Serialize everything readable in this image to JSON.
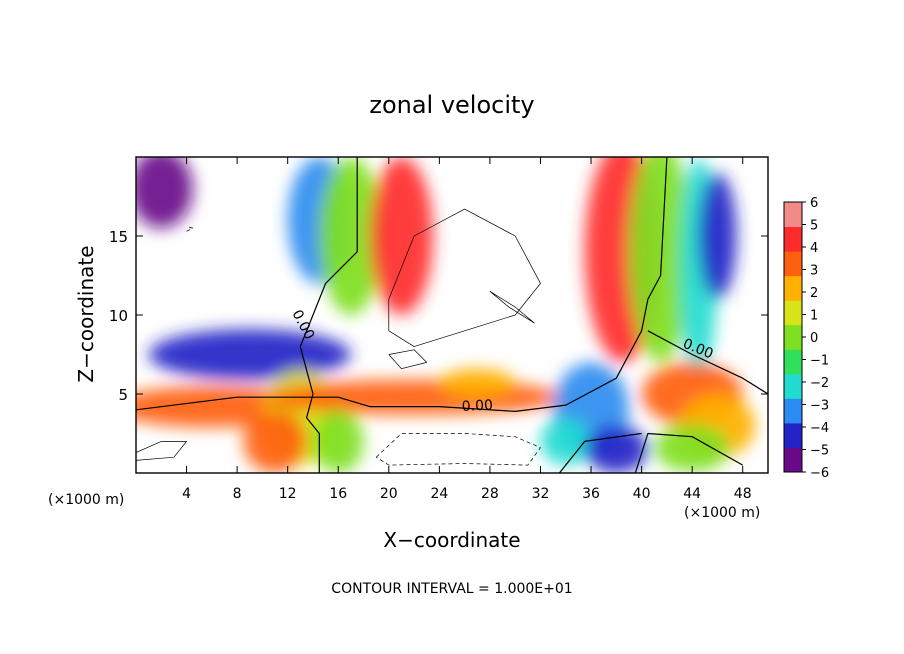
{
  "chart_data": {
    "type": "heatmap",
    "title": "zonal velocity",
    "xlabel": "X−coordinate",
    "ylabel": "Z−coordinate",
    "x_unit_left": "(×1000 m)",
    "x_unit_right": "(×1000 m)",
    "xlim": [
      0,
      50
    ],
    "ylim": [
      0,
      20
    ],
    "x_ticks": [
      4,
      8,
      12,
      16,
      20,
      24,
      28,
      32,
      36,
      40,
      44,
      48
    ],
    "y_ticks": [
      5,
      10,
      15
    ],
    "colorbar": {
      "min": -6,
      "max": 6,
      "tick_labels": [
        "6",
        "5",
        "4",
        "3",
        "2",
        "1",
        "0",
        "−1",
        "−2",
        "−3",
        "−4",
        "−5",
        "−6"
      ]
    },
    "contour_labels": [
      "0.00",
      "0.00",
      "0.00"
    ],
    "footer": "CONTOUR INTERVAL = 1.000E+01"
  },
  "colors": {
    "palette_low_to_high": [
      "#6a0a8a",
      "#2323c8",
      "#2a8cf0",
      "#22dcd2",
      "#30e05a",
      "#7ee020",
      "#d6e418",
      "#ffb000",
      "#ff6010",
      "#ff2a2a",
      "#f28a8a"
    ]
  }
}
